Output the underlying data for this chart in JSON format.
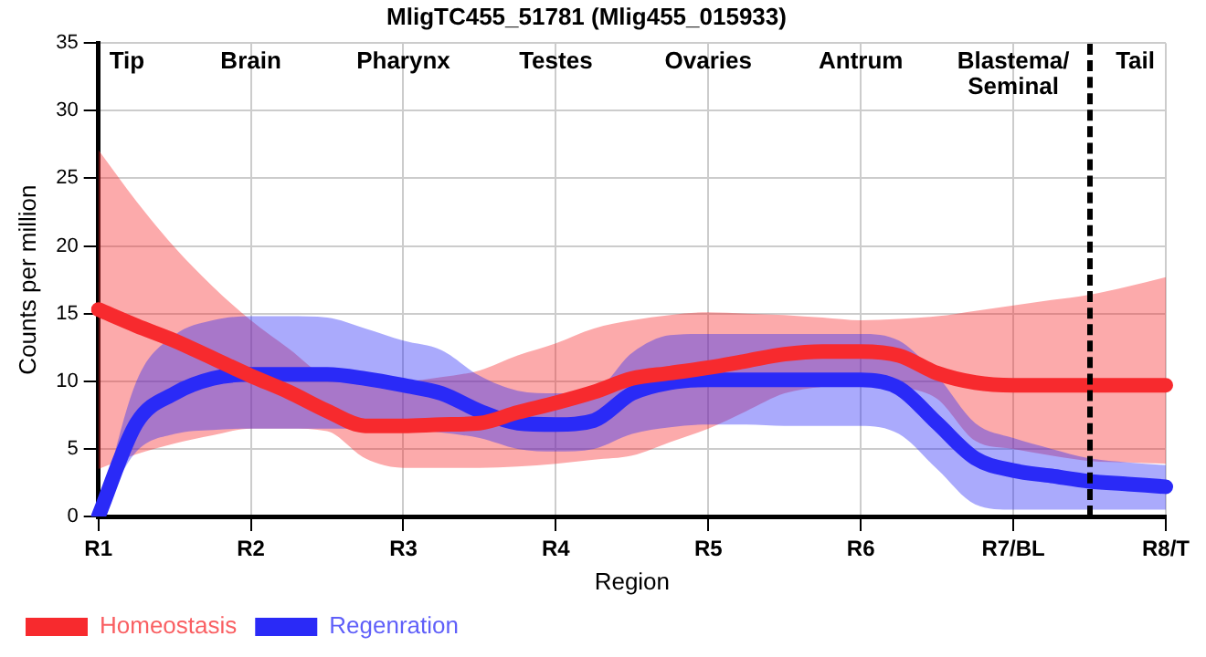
{
  "chart_data": {
    "type": "line",
    "title": "MligTC455_51781 (Mlig455_015933)",
    "xlabel": "Region",
    "ylabel": "Counts per million",
    "categories": [
      "R1",
      null,
      null,
      null,
      "R2",
      null,
      null,
      null,
      "R3",
      null,
      null,
      null,
      "R4",
      null,
      null,
      null,
      "R5",
      null,
      null,
      null,
      "R6",
      null,
      null,
      null,
      "R7/BL",
      null,
      null,
      null,
      "R8/T"
    ],
    "series": [
      {
        "name": "Homeostasis",
        "color": "#f72a2e",
        "values": [
          15.3,
          14.1,
          13.0,
          11.7,
          10.4,
          9.2,
          7.8,
          6.7,
          6.7,
          6.8,
          6.9,
          7.7,
          8.4,
          9.2,
          10.2,
          10.6,
          11.0,
          11.5,
          12.0,
          12.2,
          12.2,
          11.9,
          10.6,
          9.9,
          9.7,
          9.7,
          9.7,
          9.7,
          9.7
        ],
        "upper": [
          27.1,
          23.3,
          19.9,
          17.0,
          14.5,
          12.4,
          10.4,
          10.2,
          10.0,
          10.3,
          10.8,
          11.9,
          12.8,
          13.9,
          14.5,
          14.9,
          15.1,
          15.0,
          14.9,
          14.7,
          14.5,
          14.6,
          14.8,
          15.2,
          15.6,
          16.0,
          16.4,
          17.0,
          17.7
        ],
        "lower": [
          3.5,
          4.6,
          5.4,
          6.0,
          6.5,
          6.5,
          6.3,
          4.3,
          3.6,
          3.6,
          3.6,
          3.7,
          3.9,
          4.2,
          4.5,
          5.5,
          6.5,
          7.8,
          9.1,
          9.6,
          9.9,
          9.6,
          8.7,
          5.6,
          5.0,
          4.5,
          4.1,
          4.0,
          3.9
        ]
      },
      {
        "name": "Regenration",
        "color": "#2a2af7",
        "values": [
          0,
          6.9,
          9.1,
          10.2,
          10.5,
          10.5,
          10.5,
          10.2,
          9.7,
          9.1,
          7.8,
          6.9,
          6.8,
          7.1,
          9.1,
          9.9,
          10.1,
          10.1,
          10.1,
          10.1,
          10.1,
          9.5,
          6.9,
          4.3,
          3.4,
          3.0,
          2.6,
          2.4,
          2.2
        ],
        "upper": [
          0,
          10.0,
          13.4,
          14.5,
          14.8,
          14.8,
          14.7,
          13.9,
          13.0,
          12.3,
          10.4,
          9.3,
          9.1,
          9.3,
          12.1,
          13.4,
          13.5,
          13.5,
          13.5,
          13.5,
          13.5,
          13.0,
          10.4,
          6.9,
          5.8,
          5.0,
          4.3,
          4.0,
          3.8
        ],
        "lower": [
          0,
          4.8,
          6.1,
          6.4,
          6.5,
          6.5,
          6.5,
          6.5,
          6.5,
          6.2,
          5.8,
          5.0,
          4.8,
          5.0,
          6.1,
          6.6,
          6.8,
          6.8,
          6.7,
          6.7,
          6.7,
          6.1,
          3.5,
          0.9,
          0.5,
          0.5,
          0.5,
          0.5,
          0.5
        ]
      }
    ],
    "ylim": [
      0,
      35
    ],
    "yticks": [
      0,
      5,
      10,
      15,
      20,
      25,
      30,
      35
    ],
    "annotations": [
      "Tip",
      "Brain",
      "Pharynx",
      "Testes",
      "Ovaries",
      "Antrum",
      "Blastema/\nSeminal",
      "Tail"
    ],
    "grid": true,
    "legend": "bottom left",
    "marker": "none",
    "line_style": "solid"
  }
}
